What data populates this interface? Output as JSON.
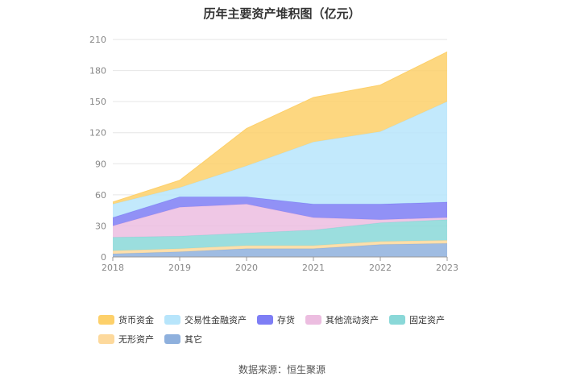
{
  "title": "历年主要资产堆积图（亿元）",
  "source": "数据来源：恒生聚源",
  "chart_data": {
    "type": "area",
    "stacked": true,
    "title": "历年主要资产堆积图（亿元）",
    "x": [
      "2018",
      "2019",
      "2020",
      "2021",
      "2022",
      "2023"
    ],
    "ylim": [
      0,
      210
    ],
    "yticks": [
      0,
      30,
      60,
      90,
      120,
      150,
      180,
      210
    ],
    "grid": true,
    "legend_position": "bottom",
    "series": [
      {
        "name": "其它",
        "color": "#8eb0dd",
        "values": [
          3,
          5,
          8,
          8,
          12,
          13
        ]
      },
      {
        "name": "无形资产",
        "color": "#fdd99c",
        "values": [
          3,
          3,
          3,
          3,
          3,
          3
        ]
      },
      {
        "name": "固定资产",
        "color": "#8ad8d8",
        "values": [
          13,
          12,
          12,
          15,
          18,
          20
        ]
      },
      {
        "name": "其他流动资产",
        "color": "#ecbde0",
        "values": [
          11,
          28,
          28,
          12,
          3,
          2
        ]
      },
      {
        "name": "存货",
        "color": "#7e7ef5",
        "values": [
          8,
          10,
          7,
          13,
          15,
          15
        ]
      },
      {
        "name": "交易性金融资产",
        "color": "#b7e5fb",
        "values": [
          13,
          9,
          30,
          60,
          70,
          97
        ]
      },
      {
        "name": "货币资金",
        "color": "#fdd06a",
        "values": [
          2,
          7,
          36,
          43,
          45,
          48
        ]
      }
    ]
  }
}
